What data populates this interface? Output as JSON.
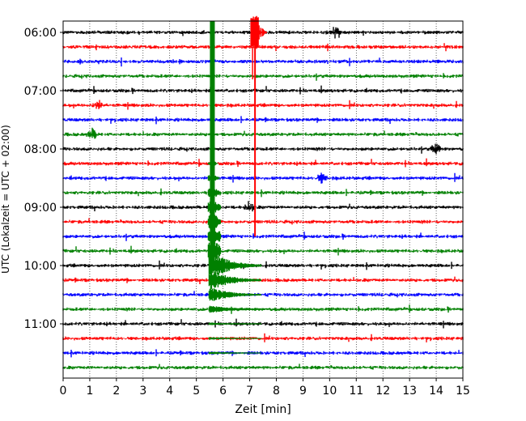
{
  "chart_data": {
    "type": "line",
    "title": "",
    "xlabel": "Zeit  [min]",
    "ylabel": "UTC (Lokalzeit = UTC + 02:00)",
    "xlim": [
      0,
      15
    ],
    "x_ticks": [
      "0",
      "1",
      "2",
      "3",
      "4",
      "5",
      "6",
      "7",
      "8",
      "9",
      "10",
      "11",
      "12",
      "13",
      "14",
      "15"
    ],
    "y_ticks": [
      "06:00",
      "07:00",
      "08:00",
      "09:00",
      "10:00",
      "11:00"
    ],
    "y_tick_rows": [
      0,
      4,
      8,
      12,
      16,
      20
    ],
    "grid": "vertical dotted",
    "row_interval_minutes": 15,
    "n_rows": 24,
    "colors": [
      "#000000",
      "#ff0000",
      "#0000ff",
      "#008000"
    ],
    "events": [
      {
        "row": 16,
        "minute": 5.6,
        "kind": "earthquake",
        "color": "#008000",
        "saturated_rows_before": 16,
        "onset_row": 7,
        "coda_until_row": 22
      },
      {
        "row": 0,
        "minute": 7.2,
        "kind": "spike",
        "color": "#ff0000",
        "saturated_rows_after": 14
      },
      {
        "row": 0,
        "minute": 10.2,
        "kind": "burst"
      },
      {
        "row": 8,
        "minute": 14.0,
        "kind": "burst"
      },
      {
        "row": 5,
        "minute": 1.3,
        "kind": "burst"
      },
      {
        "row": 7,
        "minute": 1.1,
        "kind": "burst"
      },
      {
        "row": 12,
        "minute": 7.0,
        "kind": "burst"
      },
      {
        "row": 10,
        "minute": 9.7,
        "kind": "burst"
      }
    ]
  }
}
